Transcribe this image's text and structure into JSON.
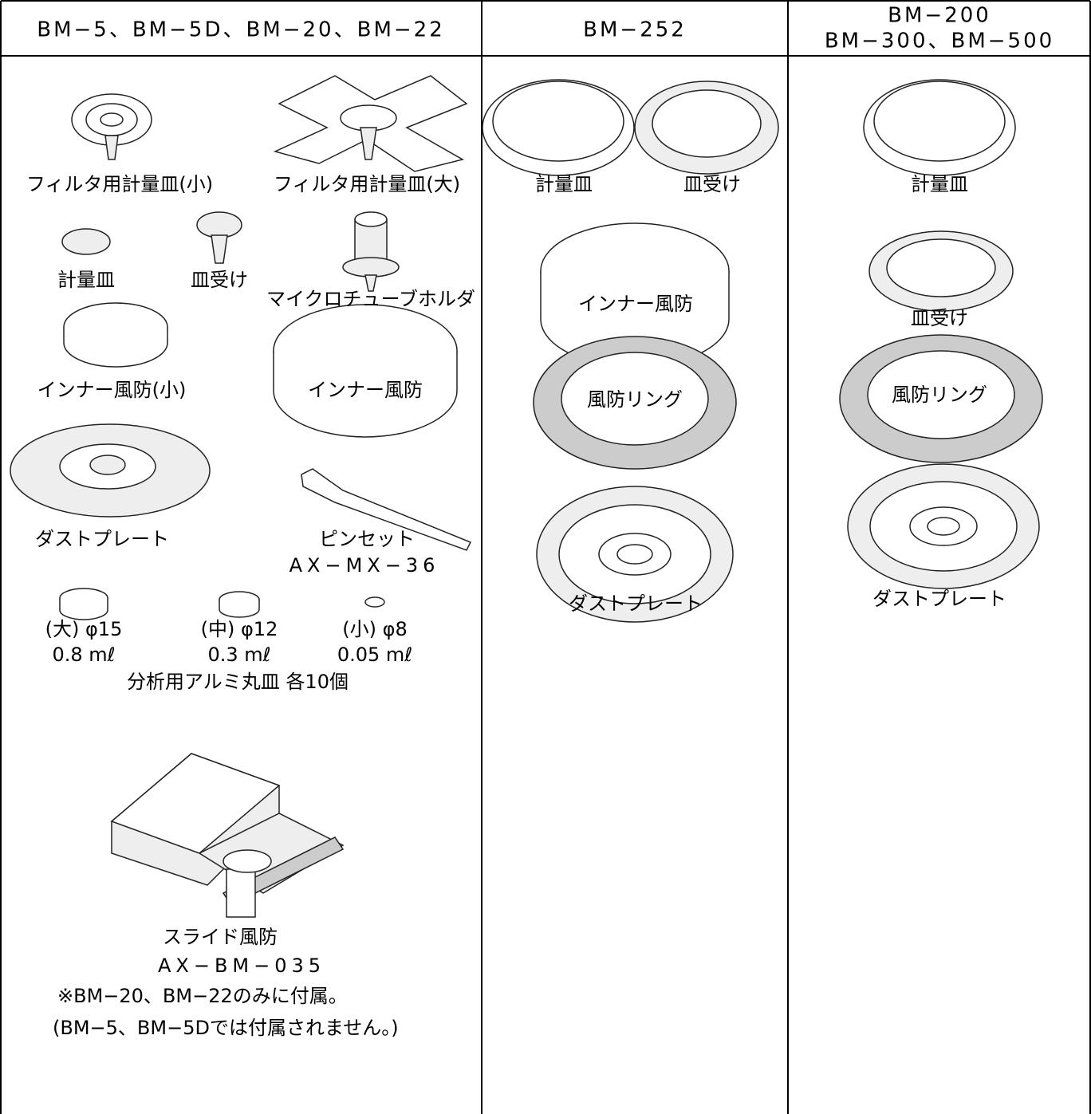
{
  "header": {
    "columns": [
      "BM−5、BM−5D、BM−20、BM−22",
      "BM−252",
      [
        "BM−200",
        "BM−300、BM−500"
      ]
    ]
  },
  "columns": [
    {
      "items": [
        "フィルタ用計量皿(小)",
        "フィルタ用計量皿(大)",
        "計量皿",
        "皿受け",
        "マイクロチューブホルダ",
        "インナー風防(小)",
        "インナー風防",
        "ダストプレート",
        "ピンセット",
        "AX−MX−36",
        "(大) φ15",
        "0.8 mℓ",
        "(中) φ12",
        "0.3 mℓ",
        "(小) φ8",
        "0.05 mℓ",
        "分析用アルミ丸皿 各10個",
        "スライド風防",
        "AX−BM−035",
        "※BM−20、BM−22のみに付属。",
        "(BM−5、BM−5Dでは付属されません。)"
      ]
    },
    {
      "items": [
        "計量皿",
        "皿受け",
        "インナー風防",
        "風防リング",
        "ダストプレート"
      ]
    },
    {
      "items": [
        "計量皿",
        "皿受け",
        "風防リング",
        "ダストプレート"
      ]
    }
  ]
}
